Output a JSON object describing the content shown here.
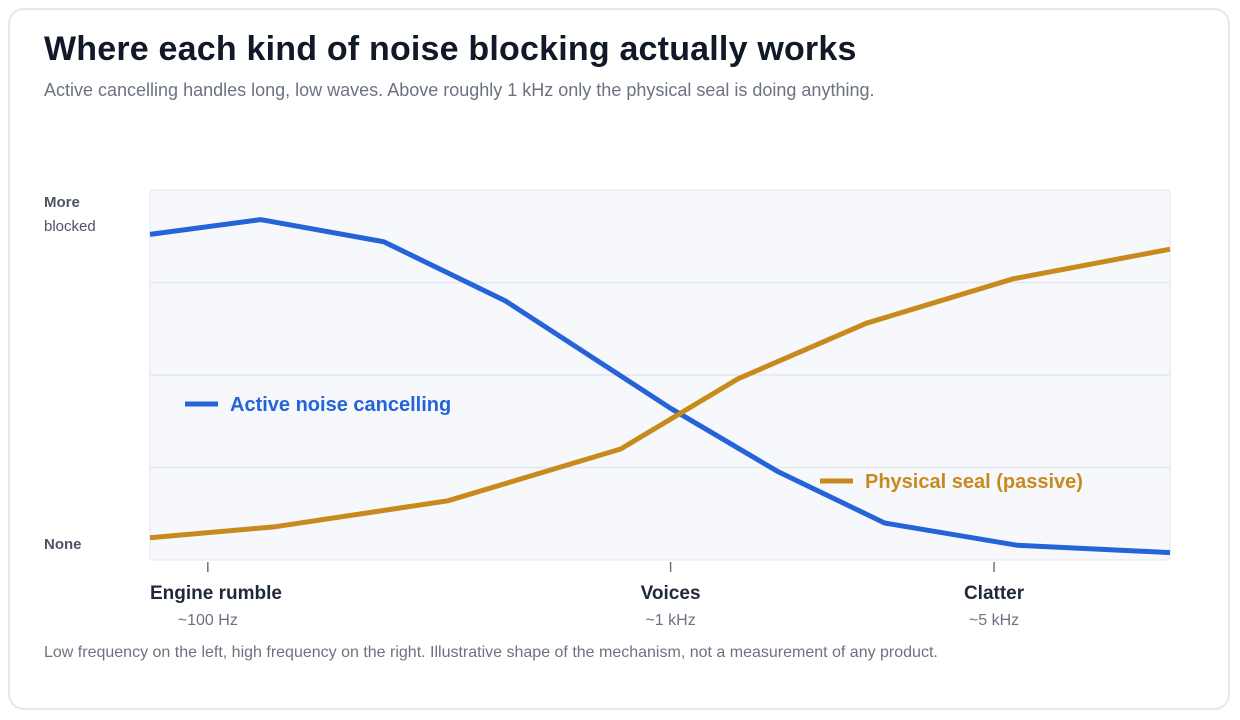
{
  "title": "Where each kind of noise blocking actually works",
  "subtitle": "Active cancelling handles long, low waves. Above roughly 1 kHz only the physical seal is doing anything.",
  "footnote": "Low frequency on the left, high frequency on the right. Illustrative shape of the mechanism, not a measurement of any product.",
  "chart_data": {
    "type": "line",
    "x_scale": "log",
    "xlim": [
      75,
      12000
    ],
    "ylim": [
      0,
      100
    ],
    "grid": true,
    "ylabel_top": [
      "More",
      "blocked"
    ],
    "ylabel_bottom": "None",
    "x_ticks": [
      {
        "value": 100,
        "label": "Engine rumble",
        "sublabel": "~100 Hz"
      },
      {
        "value": 1000,
        "label": "Voices",
        "sublabel": "~1 kHz"
      },
      {
        "value": 5000,
        "label": "Clatter",
        "sublabel": "~5 kHz"
      }
    ],
    "series": [
      {
        "name": "Active noise cancelling",
        "color": "#2563d9",
        "points": [
          [
            75,
            88
          ],
          [
            130,
            92
          ],
          [
            240,
            86
          ],
          [
            440,
            70
          ],
          [
            1000,
            41
          ],
          [
            1700,
            24
          ],
          [
            2900,
            10
          ],
          [
            5600,
            4
          ],
          [
            12000,
            2
          ]
        ]
      },
      {
        "name": "Physical seal (passive)",
        "color": "#c98a1d",
        "points": [
          [
            75,
            6
          ],
          [
            140,
            9
          ],
          [
            330,
            16
          ],
          [
            780,
            30
          ],
          [
            1400,
            49
          ],
          [
            2650,
            64
          ],
          [
            5500,
            76
          ],
          [
            12000,
            84
          ]
        ]
      }
    ]
  }
}
